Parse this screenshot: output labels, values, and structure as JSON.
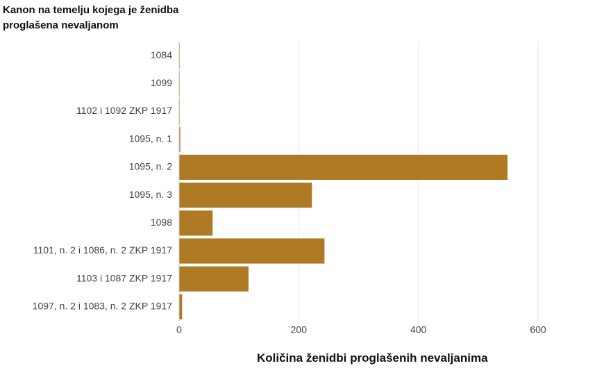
{
  "chart_data": {
    "type": "barh",
    "ylabel": "Kanon na temelju kojega je ženidba proglašena nevaljanom",
    "xlabel": "Količina ženidbi proglašenih nevaljanima",
    "categories": [
      "1084",
      "1099",
      "1102 i 1092 ZKP 1917",
      "1095, n. 1",
      "1095, n. 2",
      "1095, n. 3",
      "1098",
      "1101, n. 2 i 1086, n. 2 ZKP 1917",
      "1103 i 1087 ZKP 1917",
      "1097, n. 2 i 1083, n. 2 ZKP 1917"
    ],
    "values": [
      1,
      1,
      1,
      2,
      549,
      222,
      56,
      243,
      116,
      5
    ],
    "color": "#ae7a24",
    "xlim": [
      0,
      600
    ],
    "xticks": [
      0,
      200,
      400,
      600
    ],
    "grid": true
  }
}
